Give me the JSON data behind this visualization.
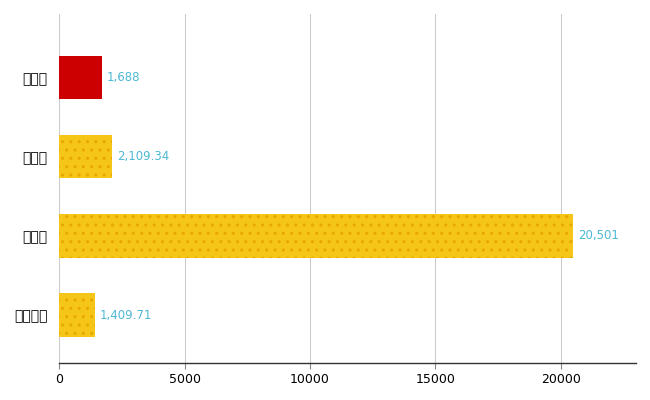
{
  "categories": [
    "西蒲区",
    "県平均",
    "県最大",
    "全国平均"
  ],
  "values": [
    1688,
    2109.34,
    20501,
    1409.71
  ],
  "bar_colors": [
    "#cc0000",
    "#f5c518",
    "#f5c518",
    "#f5c518"
  ],
  "hatch_colors": [
    "#cc0000",
    "#e6a800",
    "#e6a800",
    "#e6a800"
  ],
  "value_labels": [
    "1,688",
    "2,109.34",
    "20,501",
    "1,409.71"
  ],
  "xlim": [
    0,
    23000
  ],
  "xticks": [
    0,
    5000,
    10000,
    15000,
    20000
  ],
  "xtick_labels": [
    "0",
    "5000",
    "10000",
    "15000",
    "20000"
  ],
  "background_color": "#ffffff",
  "grid_color": "#cccccc",
  "label_color": "#4db8d4",
  "bar_height": 0.55,
  "figsize": [
    6.5,
    4.0
  ],
  "dpi": 100
}
